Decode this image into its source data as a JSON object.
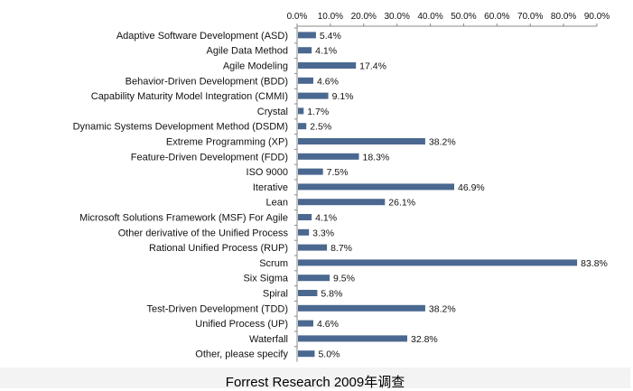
{
  "chart_data": {
    "type": "bar",
    "orientation": "horizontal",
    "categories": [
      "Adaptive Software Development (ASD)",
      "Agile Data Method",
      "Agile Modeling",
      "Behavior-Driven Development (BDD)",
      "Capability Maturity Model Integration (CMMI)",
      "Crystal",
      "Dynamic Systems Development Method (DSDM)",
      "Extreme Programming (XP)",
      "Feature-Driven Development (FDD)",
      "ISO 9000",
      "Iterative",
      "Lean",
      "Microsoft Solutions Framework (MSF) For Agile",
      "Other derivative of the Unified Process",
      "Rational Unified Process (RUP)",
      "Scrum",
      "Six Sigma",
      "Spiral",
      "Test-Driven Development (TDD)",
      "Unified Process (UP)",
      "Waterfall",
      "Other, please specify"
    ],
    "values": [
      5.4,
      4.1,
      17.4,
      4.6,
      9.1,
      1.7,
      2.5,
      38.2,
      18.3,
      7.5,
      46.9,
      26.1,
      4.1,
      3.3,
      8.7,
      83.8,
      9.5,
      5.8,
      38.2,
      4.6,
      32.8,
      5.0
    ],
    "value_labels": [
      "5.4%",
      "4.1%",
      "17.4%",
      "4.6%",
      "9.1%",
      "1.7%",
      "2.5%",
      "38.2%",
      "18.3%",
      "7.5%",
      "46.9%",
      "26.1%",
      "4.1%",
      "3.3%",
      "8.7%",
      "83.8%",
      "9.5%",
      "5.8%",
      "38.2%",
      "4.6%",
      "32.8%",
      "5.0%"
    ],
    "x_ticks": [
      "0.0%",
      "10.0%",
      "20.0%",
      "30.0%",
      "40.0%",
      "50.0%",
      "60.0%",
      "70.0%",
      "80.0%",
      "90.0%"
    ],
    "xlim": [
      0,
      90
    ],
    "x_axis_position": "top",
    "grid": false,
    "legend": "none",
    "bar_color": "#4a6890",
    "title": "",
    "xlabel": "",
    "ylabel": ""
  },
  "caption": "Forrest Research 2009年调查"
}
